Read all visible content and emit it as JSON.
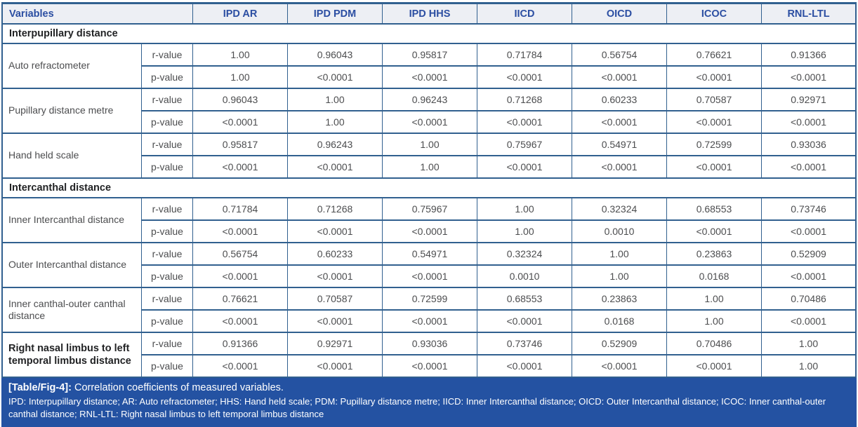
{
  "colors": {
    "border": "#31608f",
    "header_bg": "#edeff4",
    "header_text": "#2b4ea2",
    "footer_bg": "#2452a2",
    "body_text": "#4c4d4f"
  },
  "table": {
    "header": {
      "variables_label": "Variables",
      "columns": [
        "IPD AR",
        "IPD PDM",
        "IPD HHS",
        "IICD",
        "OICD",
        "ICOC",
        "RNL-LTL"
      ]
    },
    "row_labels": {
      "r": "r-value",
      "p": "p-value"
    },
    "sections": [
      {
        "title": "Interpupillary distance",
        "groups": [
          {
            "name": "Auto refractometer",
            "bold": false,
            "r": [
              "1.00",
              "0.96043",
              "0.95817",
              "0.71784",
              "0.56754",
              "0.76621",
              "0.91366"
            ],
            "p": [
              "1.00",
              "<0.0001",
              "<0.0001",
              "<0.0001",
              "<0.0001",
              "<0.0001",
              "<0.0001"
            ]
          },
          {
            "name": "Pupillary distance metre",
            "bold": false,
            "r": [
              "0.96043",
              "1.00",
              "0.96243",
              "0.71268",
              "0.60233",
              "0.70587",
              "0.92971"
            ],
            "p": [
              "<0.0001",
              "1.00",
              "<0.0001",
              "<0.0001",
              "<0.0001",
              "<0.0001",
              "<0.0001"
            ]
          },
          {
            "name": "Hand held scale",
            "bold": false,
            "r": [
              "0.95817",
              "0.96243",
              "1.00",
              "0.75967",
              "0.54971",
              "0.72599",
              "0.93036"
            ],
            "p": [
              "<0.0001",
              "<0.0001",
              "1.00",
              "<0.0001",
              "<0.0001",
              "<0.0001",
              "<0.0001"
            ]
          }
        ]
      },
      {
        "title": "Intercanthal distance",
        "groups": [
          {
            "name": "Inner Intercanthal distance",
            "bold": false,
            "r": [
              "0.71784",
              "0.71268",
              "0.75967",
              "1.00",
              "0.32324",
              "0.68553",
              "0.73746"
            ],
            "p": [
              "<0.0001",
              "<0.0001",
              "<0.0001",
              "1.00",
              "0.0010",
              "<0.0001",
              "<0.0001"
            ]
          },
          {
            "name": "Outer Intercanthal distance",
            "bold": false,
            "r": [
              "0.56754",
              "0.60233",
              "0.54971",
              "0.32324",
              "1.00",
              "0.23863",
              "0.52909"
            ],
            "p": [
              "<0.0001",
              "<0.0001",
              "<0.0001",
              "0.0010",
              "1.00",
              "0.0168",
              "<0.0001"
            ]
          },
          {
            "name": "Inner canthal-outer canthal distance",
            "bold": false,
            "r": [
              "0.76621",
              "0.70587",
              "0.72599",
              "0.68553",
              "0.23863",
              "1.00",
              "0.70486"
            ],
            "p": [
              "<0.0001",
              "<0.0001",
              "<0.0001",
              "<0.0001",
              "0.0168",
              "1.00",
              "<0.0001"
            ]
          },
          {
            "name": "Right nasal limbus to left temporal limbus distance",
            "bold": true,
            "r": [
              "0.91366",
              "0.92971",
              "0.93036",
              "0.73746",
              "0.52909",
              "0.70486",
              "1.00"
            ],
            "p": [
              "<0.0001",
              "<0.0001",
              "<0.0001",
              "<0.0001",
              "<0.0001",
              "<0.0001",
              "1.00"
            ]
          }
        ]
      }
    ]
  },
  "caption": {
    "label": "[Table/Fig-4]:",
    "title": "Correlation coefficients of measured variables.",
    "abbreviations": "IPD: Interpupillary distance; AR: Auto refractometer; HHS: Hand held scale; PDM: Pupillary distance metre; IICD: Inner Intercanthal distance; OICD: Outer Intercanthal distance; ICOC: Inner canthal-outer canthal distance; RNL-LTL: Right nasal limbus to left temporal limbus distance"
  }
}
